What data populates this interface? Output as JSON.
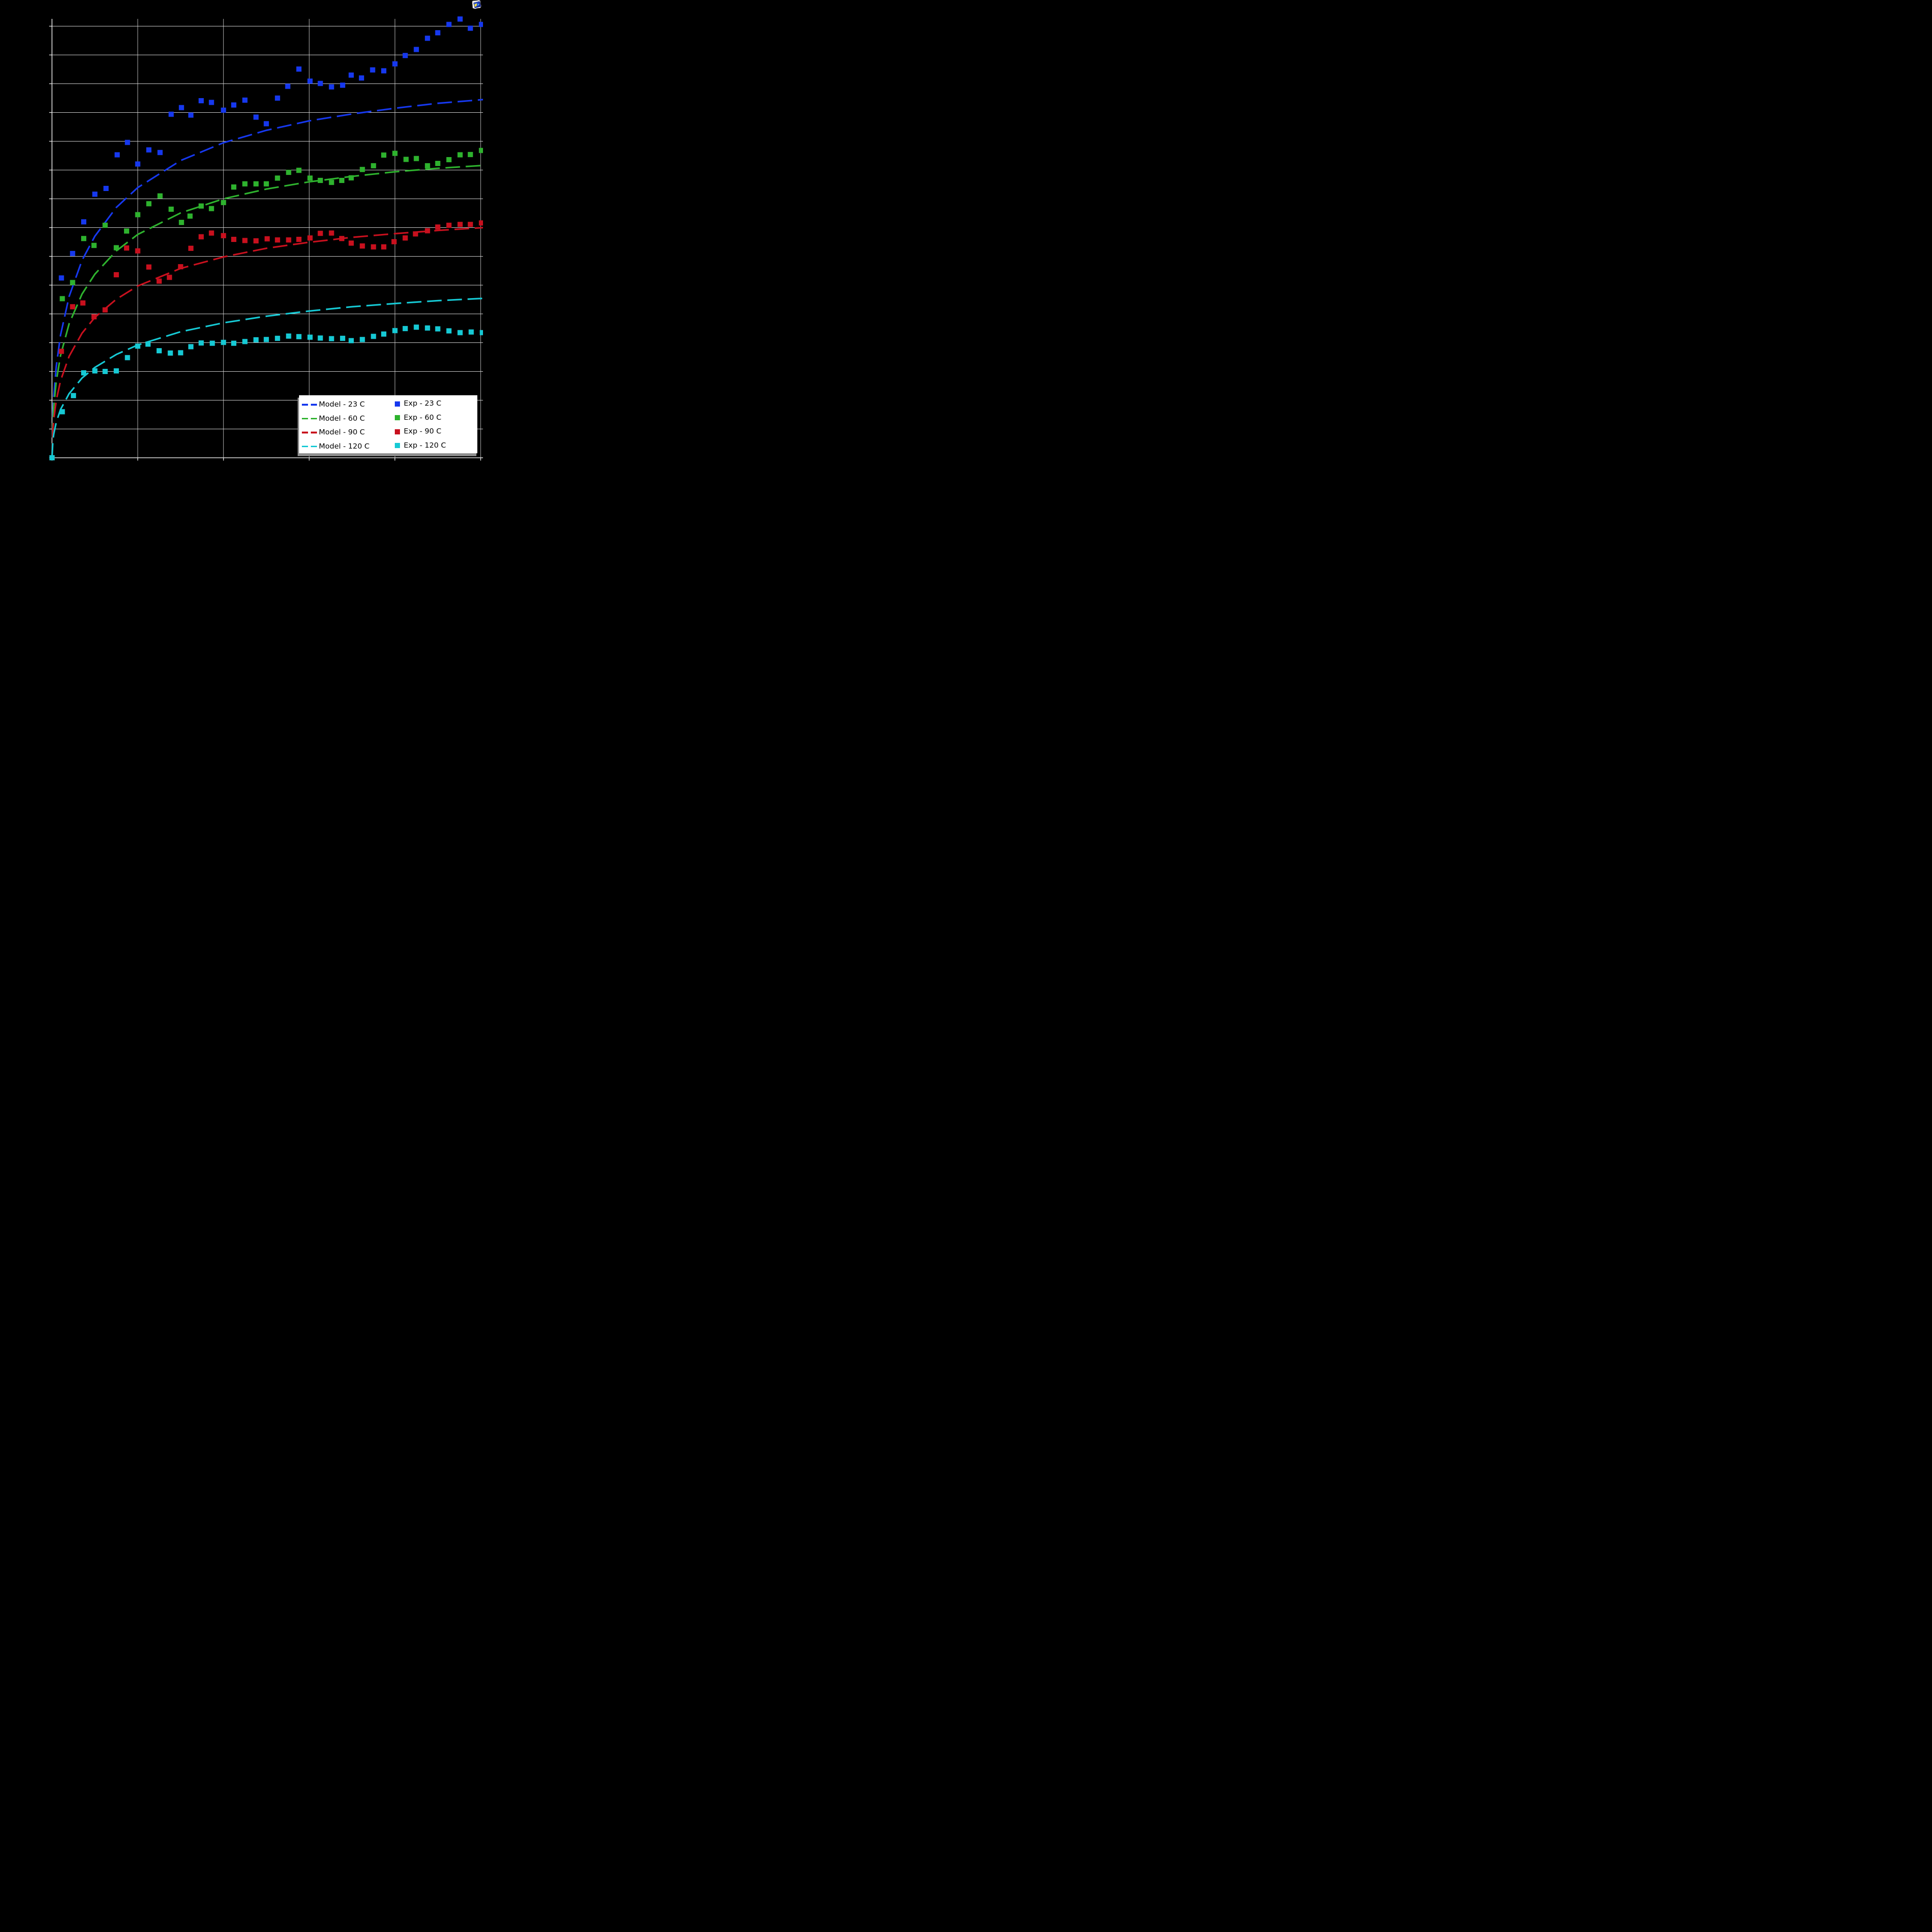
{
  "app": {
    "background_color": "#000000",
    "plot_bg_color": "#000000",
    "gridline_color": "#d6d6d6",
    "spine_color": "#ececec"
  },
  "toolbar": {
    "icon": "image-viewer-icon"
  },
  "legend": {
    "bg_color": "#ffffff",
    "shadow_color": "#8e8e8e",
    "entries": [
      {
        "label": "Model - 23 C",
        "color": "#1638ee",
        "sample": "dashed-line"
      },
      {
        "label": "Model - 60 C",
        "color": "#2eb22e",
        "sample": "dashed-line"
      },
      {
        "label": "Model - 90 C",
        "color": "#c8101e",
        "sample": "dashed-line"
      },
      {
        "label": "Model - 120 C",
        "color": "#16c9d4",
        "sample": "dashed-line"
      },
      {
        "label": "Exp - 23 C",
        "color": "#1638ee",
        "sample": "square-marker"
      },
      {
        "label": "Exp - 60 C",
        "color": "#2eb22e",
        "sample": "square-marker"
      },
      {
        "label": "Exp - 90 C",
        "color": "#c8101e",
        "sample": "square-marker"
      },
      {
        "label": "Exp - 120 C",
        "color": "#16c9d4",
        "sample": "square-marker"
      }
    ]
  },
  "chart_data": {
    "type": "scatter",
    "title": "",
    "xlabel": "",
    "ylabel": "",
    "axis_tick_labels_visible": false,
    "xlim": [
      0,
      5.03
    ],
    "ylim": [
      0,
      15.25
    ],
    "x_grid_step": 1,
    "y_grid_step": 1,
    "grid": true,
    "legend_position": "lower right",
    "series": [
      {
        "name": "Model - 23 C",
        "role": "model",
        "style": "dashed",
        "color": "#1638ee",
        "points": [
          [
            0,
            0
          ],
          [
            0.01,
            1.53
          ],
          [
            0.02,
            2.12
          ],
          [
            0.05,
            3.18
          ],
          [
            0.1,
            4.27
          ],
          [
            0.2,
            5.61
          ],
          [
            0.35,
            6.86
          ],
          [
            0.5,
            7.7
          ],
          [
            0.75,
            8.7
          ],
          [
            1,
            9.39
          ],
          [
            1.5,
            10.33
          ],
          [
            2,
            10.95
          ],
          [
            2.5,
            11.38
          ],
          [
            3,
            11.71
          ],
          [
            3.5,
            11.95
          ],
          [
            4,
            12.15
          ],
          [
            4.5,
            12.32
          ],
          [
            5.03,
            12.45
          ]
        ]
      },
      {
        "name": "Model - 60 C",
        "role": "model",
        "style": "dashed",
        "color": "#2eb22e",
        "points": [
          [
            0,
            0
          ],
          [
            0.01,
            1.28
          ],
          [
            0.02,
            1.77
          ],
          [
            0.05,
            2.66
          ],
          [
            0.1,
            3.56
          ],
          [
            0.2,
            4.66
          ],
          [
            0.35,
            5.69
          ],
          [
            0.5,
            6.38
          ],
          [
            0.75,
            7.19
          ],
          [
            1,
            7.76
          ],
          [
            1.5,
            8.51
          ],
          [
            2,
            9.0
          ],
          [
            2.5,
            9.34
          ],
          [
            3,
            9.59
          ],
          [
            3.5,
            9.78
          ],
          [
            4,
            9.94
          ],
          [
            4.5,
            10.06
          ],
          [
            5.03,
            10.16
          ]
        ]
      },
      {
        "name": "Model - 90 C",
        "role": "model",
        "style": "dashed",
        "color": "#c8101e",
        "points": [
          [
            0,
            0
          ],
          [
            0.01,
            0.96
          ],
          [
            0.02,
            1.32
          ],
          [
            0.05,
            2.0
          ],
          [
            0.1,
            2.68
          ],
          [
            0.2,
            3.53
          ],
          [
            0.35,
            4.33
          ],
          [
            0.5,
            4.88
          ],
          [
            0.75,
            5.51
          ],
          [
            1,
            5.97
          ],
          [
            1.5,
            6.58
          ],
          [
            2,
            6.98
          ],
          [
            2.5,
            7.28
          ],
          [
            3,
            7.49
          ],
          [
            3.5,
            7.66
          ],
          [
            4,
            7.79
          ],
          [
            4.5,
            7.9
          ],
          [
            5.03,
            8.0
          ]
        ]
      },
      {
        "name": "Model - 120 C",
        "role": "model",
        "style": "dashed",
        "color": "#16c9d4",
        "points": [
          [
            0,
            0
          ],
          [
            0.01,
            0.59
          ],
          [
            0.02,
            0.82
          ],
          [
            0.05,
            1.24
          ],
          [
            0.1,
            1.68
          ],
          [
            0.2,
            2.23
          ],
          [
            0.35,
            2.77
          ],
          [
            0.5,
            3.14
          ],
          [
            0.75,
            3.59
          ],
          [
            1,
            3.92
          ],
          [
            1.5,
            4.38
          ],
          [
            2,
            4.69
          ],
          [
            2.5,
            4.92
          ],
          [
            3,
            5.1
          ],
          [
            3.5,
            5.25
          ],
          [
            4,
            5.36
          ],
          [
            4.5,
            5.46
          ],
          [
            5.03,
            5.54
          ]
        ]
      },
      {
        "name": "Exp - 23 C",
        "role": "experiment",
        "style": "square-marker",
        "color": "#1638ee",
        "points": [
          [
            0,
            0
          ],
          [
            0.11,
            6.25
          ],
          [
            0.24,
            7.1
          ],
          [
            0.37,
            8.2
          ],
          [
            0.5,
            9.16
          ],
          [
            0.63,
            9.36
          ],
          [
            0.76,
            10.53
          ],
          [
            0.88,
            10.96
          ],
          [
            1.0,
            10.21
          ],
          [
            1.13,
            10.7
          ],
          [
            1.26,
            10.61
          ],
          [
            1.39,
            11.94
          ],
          [
            1.51,
            12.17
          ],
          [
            1.62,
            11.91
          ],
          [
            1.74,
            12.41
          ],
          [
            1.86,
            12.35
          ],
          [
            2.0,
            12.08
          ],
          [
            2.12,
            12.26
          ],
          [
            2.25,
            12.43
          ],
          [
            2.38,
            11.84
          ],
          [
            2.5,
            11.61
          ],
          [
            2.63,
            12.5
          ],
          [
            2.75,
            12.91
          ],
          [
            2.88,
            13.51
          ],
          [
            3.01,
            13.09
          ],
          [
            3.13,
            13.01
          ],
          [
            3.26,
            12.89
          ],
          [
            3.39,
            12.95
          ],
          [
            3.49,
            13.3
          ],
          [
            3.61,
            13.2
          ],
          [
            3.74,
            13.48
          ],
          [
            3.87,
            13.45
          ],
          [
            4.0,
            13.69
          ],
          [
            4.12,
            13.98
          ],
          [
            4.25,
            14.19
          ],
          [
            4.38,
            14.58
          ],
          [
            4.5,
            14.77
          ],
          [
            4.63,
            15.06
          ],
          [
            4.76,
            15.25
          ],
          [
            4.88,
            14.93
          ],
          [
            5.01,
            15.06
          ]
        ]
      },
      {
        "name": "Exp - 60 C",
        "role": "experiment",
        "style": "square-marker",
        "color": "#2eb22e",
        "points": [
          [
            0,
            0
          ],
          [
            0.12,
            5.53
          ],
          [
            0.24,
            6.09
          ],
          [
            0.37,
            7.62
          ],
          [
            0.49,
            7.38
          ],
          [
            0.62,
            8.08
          ],
          [
            0.75,
            7.3
          ],
          [
            0.87,
            7.88
          ],
          [
            1.0,
            8.45
          ],
          [
            1.13,
            8.83
          ],
          [
            1.26,
            9.1
          ],
          [
            1.39,
            8.64
          ],
          [
            1.51,
            8.18
          ],
          [
            1.61,
            8.4
          ],
          [
            1.74,
            8.75
          ],
          [
            1.86,
            8.66
          ],
          [
            2.0,
            8.87
          ],
          [
            2.12,
            9.41
          ],
          [
            2.25,
            9.52
          ],
          [
            2.38,
            9.52
          ],
          [
            2.5,
            9.52
          ],
          [
            2.63,
            9.72
          ],
          [
            2.76,
            9.92
          ],
          [
            2.88,
            9.99
          ],
          [
            3.01,
            9.72
          ],
          [
            3.13,
            9.64
          ],
          [
            3.26,
            9.57
          ],
          [
            3.38,
            9.64
          ],
          [
            3.49,
            9.73
          ],
          [
            3.62,
            10.02
          ],
          [
            3.75,
            10.15
          ],
          [
            3.87,
            10.52
          ],
          [
            4.0,
            10.58
          ],
          [
            4.13,
            10.37
          ],
          [
            4.25,
            10.4
          ],
          [
            4.38,
            10.15
          ],
          [
            4.5,
            10.23
          ],
          [
            4.63,
            10.36
          ],
          [
            4.76,
            10.53
          ],
          [
            4.88,
            10.54
          ],
          [
            5.01,
            10.68
          ]
        ]
      },
      {
        "name": "Exp - 90 C",
        "role": "experiment",
        "style": "square-marker",
        "color": "#c8101e",
        "points": [
          [
            0,
            0
          ],
          [
            0.11,
            3.7
          ],
          [
            0.24,
            5.25
          ],
          [
            0.36,
            5.38
          ],
          [
            0.49,
            4.9
          ],
          [
            0.62,
            5.14
          ],
          [
            0.75,
            6.36
          ],
          [
            0.87,
            7.29
          ],
          [
            1.0,
            7.19
          ],
          [
            1.13,
            6.63
          ],
          [
            1.25,
            6.14
          ],
          [
            1.37,
            6.27
          ],
          [
            1.5,
            6.64
          ],
          [
            1.62,
            7.28
          ],
          [
            1.74,
            7.68
          ],
          [
            1.86,
            7.81
          ],
          [
            2.0,
            7.72
          ],
          [
            2.12,
            7.59
          ],
          [
            2.25,
            7.55
          ],
          [
            2.38,
            7.54
          ],
          [
            2.51,
            7.61
          ],
          [
            2.63,
            7.57
          ],
          [
            2.76,
            7.57
          ],
          [
            2.88,
            7.59
          ],
          [
            3.01,
            7.64
          ],
          [
            3.13,
            7.8
          ],
          [
            3.26,
            7.81
          ],
          [
            3.38,
            7.62
          ],
          [
            3.49,
            7.46
          ],
          [
            3.62,
            7.36
          ],
          [
            3.75,
            7.33
          ],
          [
            3.87,
            7.33
          ],
          [
            3.99,
            7.51
          ],
          [
            4.12,
            7.64
          ],
          [
            4.24,
            7.78
          ],
          [
            4.38,
            7.89
          ],
          [
            4.5,
            8.02
          ],
          [
            4.63,
            8.08
          ],
          [
            4.76,
            8.11
          ],
          [
            4.88,
            8.11
          ],
          [
            5.01,
            8.16
          ]
        ]
      },
      {
        "name": "Exp - 120 C",
        "role": "experiment",
        "style": "square-marker",
        "color": "#16c9d4",
        "points": [
          [
            0,
            0
          ],
          [
            0.12,
            1.6
          ],
          [
            0.25,
            2.16
          ],
          [
            0.37,
            2.95
          ],
          [
            0.5,
            3.02
          ],
          [
            0.62,
            3.0
          ],
          [
            0.75,
            3.02
          ],
          [
            0.88,
            3.48
          ],
          [
            1.0,
            3.88
          ],
          [
            1.12,
            3.95
          ],
          [
            1.25,
            3.72
          ],
          [
            1.38,
            3.64
          ],
          [
            1.5,
            3.65
          ],
          [
            1.62,
            3.86
          ],
          [
            1.74,
            3.99
          ],
          [
            1.87,
            3.98
          ],
          [
            2.0,
            4.01
          ],
          [
            2.12,
            3.98
          ],
          [
            2.25,
            4.04
          ],
          [
            2.38,
            4.1
          ],
          [
            2.5,
            4.11
          ],
          [
            2.63,
            4.15
          ],
          [
            2.76,
            4.23
          ],
          [
            2.88,
            4.21
          ],
          [
            3.01,
            4.19
          ],
          [
            3.13,
            4.16
          ],
          [
            3.26,
            4.14
          ],
          [
            3.39,
            4.15
          ],
          [
            3.49,
            4.07
          ],
          [
            3.62,
            4.11
          ],
          [
            3.75,
            4.22
          ],
          [
            3.87,
            4.3
          ],
          [
            4.0,
            4.42
          ],
          [
            4.12,
            4.49
          ],
          [
            4.25,
            4.54
          ],
          [
            4.38,
            4.51
          ],
          [
            4.5,
            4.48
          ],
          [
            4.63,
            4.41
          ],
          [
            4.76,
            4.35
          ],
          [
            4.89,
            4.37
          ],
          [
            5.02,
            4.35
          ]
        ]
      }
    ]
  }
}
